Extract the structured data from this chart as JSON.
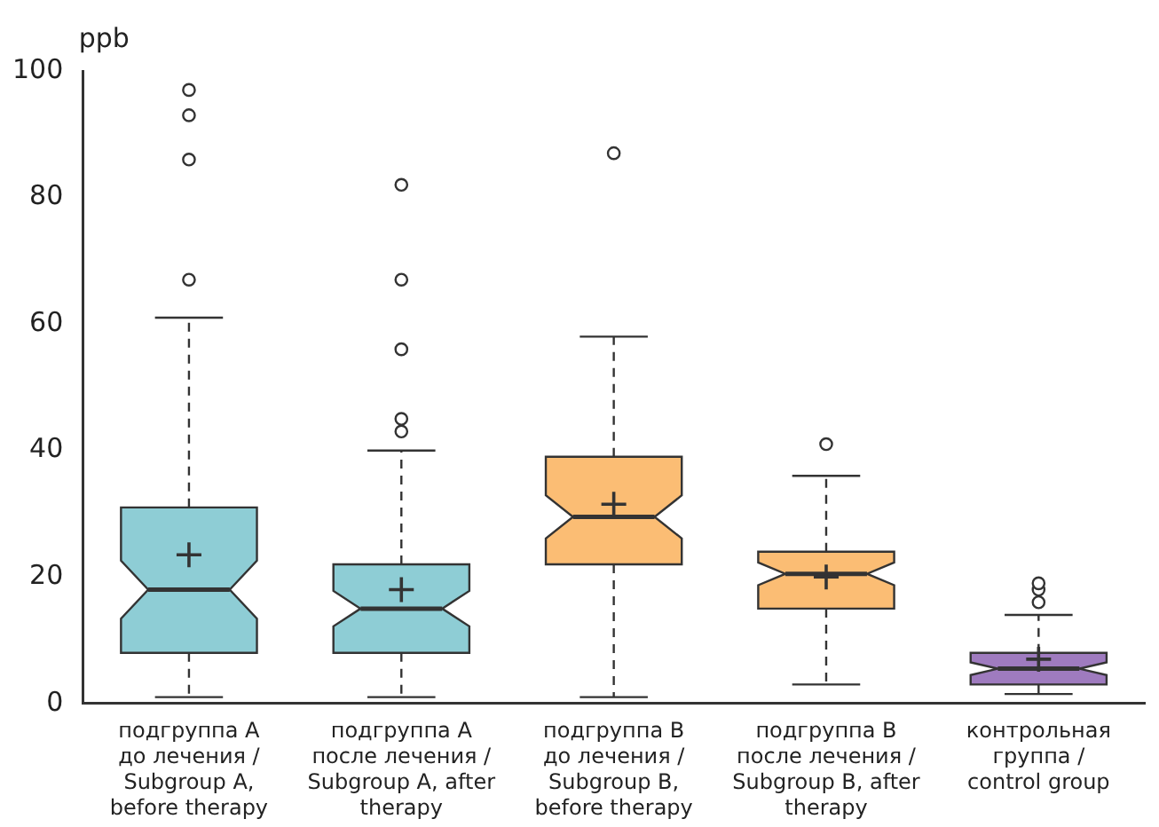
{
  "chart_data": {
    "type": "box",
    "ylabel": "ppb",
    "categories": [
      "подгруппа A\nдо лечения /\nSubgroup A,\nbefore therapy",
      "подгруппа A\nпосле лечения /\nSubgroup A, after\ntherapy",
      "подгруппа B\nдо лечения /\nSubgroup B,\nbefore therapy",
      "подгруппа B\nпосле лечения /\nSubgroup B, after\ntherapy",
      "контрольная\nгруппа /\ncontrol group"
    ],
    "colors": [
      "#8ecdd5",
      "#8ecdd5",
      "#fbbd74",
      "#fbbd74",
      "#9f7bbf"
    ],
    "boxes": [
      {
        "low": 1,
        "q1": 8,
        "median": 18,
        "q3": 31,
        "high": 61,
        "mean": 23.5,
        "outliers": [
          67,
          86,
          93,
          97
        ]
      },
      {
        "low": 1,
        "q1": 8,
        "median": 15,
        "q3": 22,
        "high": 40,
        "mean": 18,
        "outliers": [
          43,
          45,
          56,
          67,
          82
        ]
      },
      {
        "low": 1,
        "q1": 22,
        "median": 29.5,
        "q3": 39,
        "high": 58,
        "mean": 31.5,
        "outliers": [
          87
        ]
      },
      {
        "low": 3,
        "q1": 15,
        "median": 20.5,
        "q3": 24,
        "high": 36,
        "mean": 20,
        "outliers": [
          41
        ]
      },
      {
        "low": 1.5,
        "q1": 3,
        "median": 5.5,
        "q3": 8,
        "high": 14,
        "mean": 7,
        "outliers": [
          16,
          18,
          19
        ]
      }
    ],
    "ylim": [
      0,
      100
    ],
    "yticks": [
      0,
      20,
      40,
      60,
      80,
      100
    ],
    "grid": false,
    "legend": false
  }
}
